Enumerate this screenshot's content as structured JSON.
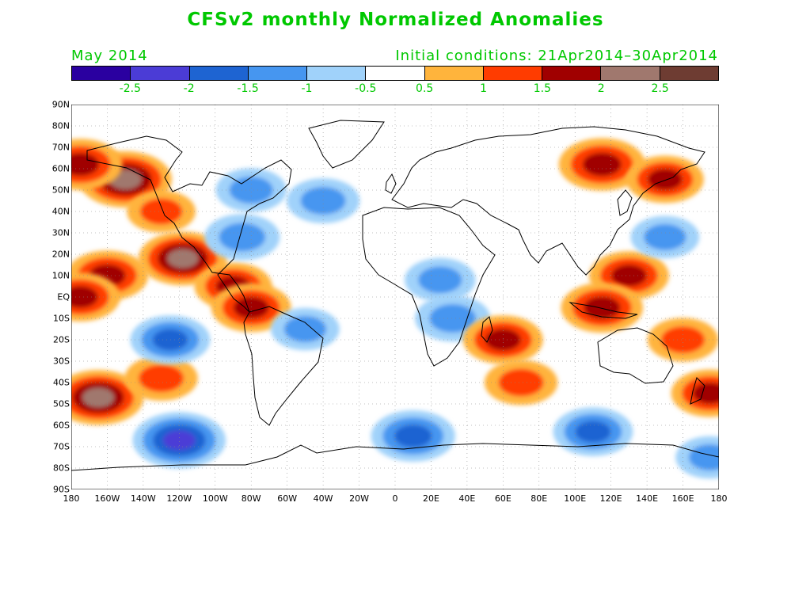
{
  "title": "CFSv2 monthly Normalized Anomalies",
  "month": "May 2014",
  "initial_conditions": "Initial conditions: 21Apr2014–30Apr2014",
  "colorbar": {
    "colors": [
      "#2a00a0",
      "#4b3cd6",
      "#1e64d2",
      "#4696f0",
      "#a0d2fa",
      "#ffffff",
      "#ffb43c",
      "#ff3c00",
      "#a00000",
      "#a0786e",
      "#6e3c32"
    ],
    "labels": [
      "-2.5",
      "-2",
      "-1.5",
      "-1",
      "-0.5",
      "0.5",
      "1",
      "1.5",
      "2",
      "2.5"
    ]
  },
  "lat_labels": [
    "90N",
    "80N",
    "70N",
    "60N",
    "50N",
    "40N",
    "30N",
    "20N",
    "10N",
    "EQ",
    "10S",
    "20S",
    "30S",
    "40S",
    "50S",
    "60S",
    "70S",
    "80S",
    "90S"
  ],
  "lon_labels": [
    "180",
    "160W",
    "140W",
    "120W",
    "100W",
    "80W",
    "60W",
    "40W",
    "20W",
    "0",
    "20E",
    "40E",
    "60E",
    "80E",
    "100E",
    "120E",
    "140E",
    "160E",
    "180"
  ],
  "map_data": {
    "projection": "cylindrical-equidistant",
    "lon_range": [
      -180,
      180
    ],
    "lat_range": [
      -90,
      90
    ],
    "anomalies": [
      {
        "lon": -150,
        "lat": 55,
        "level": 2.2
      },
      {
        "lon": -175,
        "lat": 62,
        "level": 1.8
      },
      {
        "lon": -130,
        "lat": 40,
        "level": 1.1
      },
      {
        "lon": -118,
        "lat": 18,
        "level": 2.0
      },
      {
        "lon": -160,
        "lat": 10,
        "level": 1.7
      },
      {
        "lon": -175,
        "lat": 0,
        "level": 1.6
      },
      {
        "lon": -90,
        "lat": 5,
        "level": 1.5
      },
      {
        "lon": -80,
        "lat": -5,
        "level": 1.6
      },
      {
        "lon": -165,
        "lat": -47,
        "level": 2.1
      },
      {
        "lon": -130,
        "lat": -38,
        "level": 1.3
      },
      {
        "lon": -80,
        "lat": 50,
        "level": -1.2
      },
      {
        "lon": -40,
        "lat": 45,
        "level": -1.3
      },
      {
        "lon": -85,
        "lat": 28,
        "level": -1.4
      },
      {
        "lon": -125,
        "lat": -20,
        "level": -1.6
      },
      {
        "lon": -50,
        "lat": -15,
        "level": -1.1
      },
      {
        "lon": 25,
        "lat": 8,
        "level": -1.2
      },
      {
        "lon": 32,
        "lat": -10,
        "level": -1.4
      },
      {
        "lon": 60,
        "lat": -20,
        "level": 1.6
      },
      {
        "lon": 70,
        "lat": -40,
        "level": 1.3
      },
      {
        "lon": 115,
        "lat": 62,
        "level": 1.9
      },
      {
        "lon": 150,
        "lat": 55,
        "level": 1.5
      },
      {
        "lon": 130,
        "lat": 10,
        "level": 1.6
      },
      {
        "lon": 115,
        "lat": -5,
        "level": 1.7
      },
      {
        "lon": 160,
        "lat": -20,
        "level": 1.2
      },
      {
        "lon": 175,
        "lat": -45,
        "level": 1.5
      },
      {
        "lon": -120,
        "lat": -67,
        "level": -2.2
      },
      {
        "lon": 10,
        "lat": -65,
        "level": -1.8
      },
      {
        "lon": 110,
        "lat": -63,
        "level": -1.6
      },
      {
        "lon": 175,
        "lat": -75,
        "level": -1.1
      },
      {
        "lon": 150,
        "lat": 28,
        "level": -1.1
      }
    ]
  }
}
